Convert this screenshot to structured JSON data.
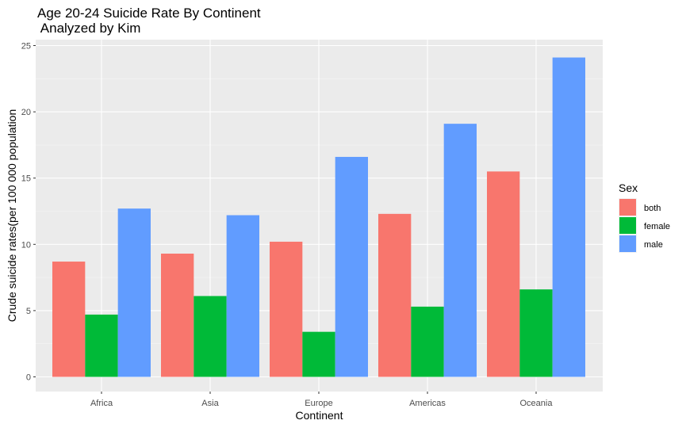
{
  "chart_data": {
    "type": "bar",
    "title": "Age 20-24 Suicide Rate By Continent",
    "subtitle": " Analyzed by Kim",
    "xlabel": "Continent",
    "ylabel": "Crude suicide rates(per 100 000 population",
    "categories": [
      "Africa",
      "Asia",
      "Europe",
      "Americas",
      "Oceania"
    ],
    "ylim": [
      0,
      25
    ],
    "yticks": [
      0,
      5,
      10,
      15,
      20,
      25
    ],
    "grid": true,
    "legend_title": "Sex",
    "legend_position": "right",
    "series": [
      {
        "name": "both",
        "color": "#F8766D",
        "values": [
          8.7,
          9.3,
          10.2,
          12.3,
          15.5
        ]
      },
      {
        "name": "female",
        "color": "#00BA38",
        "values": [
          4.7,
          6.1,
          3.4,
          5.3,
          6.6
        ]
      },
      {
        "name": "male",
        "color": "#619CFF",
        "values": [
          12.7,
          12.2,
          16.6,
          19.1,
          24.1
        ]
      }
    ]
  }
}
